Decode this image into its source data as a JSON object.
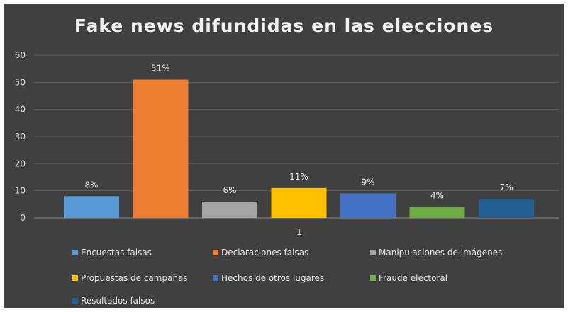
{
  "chart_data": {
    "type": "bar",
    "title": "Fake news difundidas en las elecciones",
    "categories": [
      "1"
    ],
    "ylim": [
      0,
      60
    ],
    "yticks": [
      0,
      10,
      20,
      30,
      40,
      50,
      60
    ],
    "grid": true,
    "legend_position": "bottom",
    "series": [
      {
        "name": "Encuestas falsas",
        "value": 8,
        "label": "8%",
        "color": "#5b9bd5"
      },
      {
        "name": "Declaraciones falsas",
        "value": 51,
        "label": "51%",
        "color": "#ed7d31"
      },
      {
        "name": "Manipulaciones de imágenes",
        "value": 6,
        "label": "6%",
        "color": "#a5a5a5"
      },
      {
        "name": "Propuestas de campañas",
        "value": 11,
        "label": "11%",
        "color": "#ffc000"
      },
      {
        "name": "Hechos de otros lugares",
        "value": 9,
        "label": "9%",
        "color": "#4472c4"
      },
      {
        "name": "Fraude electoral",
        "value": 4,
        "label": "4%",
        "color": "#70ad47"
      },
      {
        "name": "Resultados falsos",
        "value": 7,
        "label": "7%",
        "color": "#255e91"
      }
    ]
  }
}
